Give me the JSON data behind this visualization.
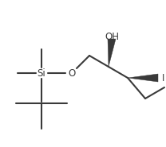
{
  "bg_color": "#ffffff",
  "line_color": "#3a3a3a",
  "text_color": "#3a3a3a",
  "line_width": 1.5,
  "si_label": "Si",
  "o_label": "O",
  "oh_label": "OH",
  "i_label": "I",
  "figsize": [
    2.08,
    1.85
  ],
  "dpi": 100
}
